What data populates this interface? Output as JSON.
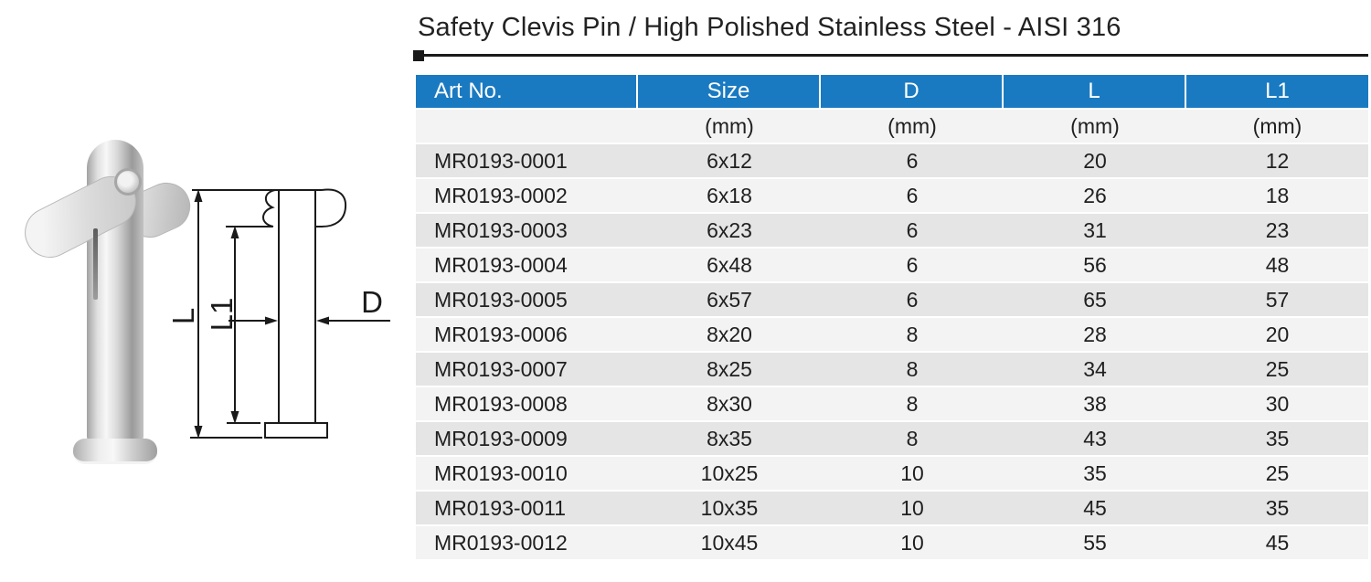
{
  "title": "Safety Clevis Pin / High Polished Stainless Steel - AISI 316",
  "colors": {
    "header_bg": "#1a7ac1",
    "header_text": "#ffffff",
    "row_odd": "#e5e5e5",
    "row_even": "#f3f3f3",
    "line": "#1a1a1a",
    "text": "#1f1f1f"
  },
  "diagram": {
    "labels": {
      "length_total": "L",
      "length_under_head": "L1",
      "diameter": "D"
    }
  },
  "table": {
    "header": {
      "art_no": "Art No.",
      "size": "Size",
      "d": "D",
      "l": "L",
      "l1": "L1"
    },
    "unit_row": {
      "art_no": "",
      "size": "(mm)",
      "d": "(mm)",
      "l": "(mm)",
      "l1": "(mm)"
    },
    "rows": [
      {
        "art_no": "MR0193-0001",
        "size": "6x12",
        "d": "6",
        "l": "20",
        "l1": "12"
      },
      {
        "art_no": "MR0193-0002",
        "size": "6x18",
        "d": "6",
        "l": "26",
        "l1": "18"
      },
      {
        "art_no": "MR0193-0003",
        "size": "6x23",
        "d": "6",
        "l": "31",
        "l1": "23"
      },
      {
        "art_no": "MR0193-0004",
        "size": "6x48",
        "d": "6",
        "l": "56",
        "l1": "48"
      },
      {
        "art_no": "MR0193-0005",
        "size": "6x57",
        "d": "6",
        "l": "65",
        "l1": "57"
      },
      {
        "art_no": "MR0193-0006",
        "size": "8x20",
        "d": "8",
        "l": "28",
        "l1": "20"
      },
      {
        "art_no": "MR0193-0007",
        "size": "8x25",
        "d": "8",
        "l": "34",
        "l1": "25"
      },
      {
        "art_no": "MR0193-0008",
        "size": "8x30",
        "d": "8",
        "l": "38",
        "l1": "30"
      },
      {
        "art_no": "MR0193-0009",
        "size": "8x35",
        "d": "8",
        "l": "43",
        "l1": "35"
      },
      {
        "art_no": "MR0193-0010",
        "size": "10x25",
        "d": "10",
        "l": "35",
        "l1": "25"
      },
      {
        "art_no": "MR0193-0011",
        "size": "10x35",
        "d": "10",
        "l": "45",
        "l1": "35"
      },
      {
        "art_no": "MR0193-0012",
        "size": "10x45",
        "d": "10",
        "l": "55",
        "l1": "45"
      }
    ]
  }
}
